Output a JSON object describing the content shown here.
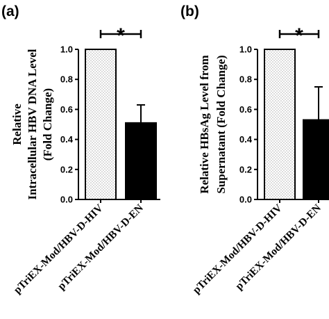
{
  "chart_data": [
    {
      "type": "bar",
      "panel_label": "(a)",
      "ylabel_lines": [
        "Relative",
        "Intracellular HBV DNA Level",
        "(Fold Change)"
      ],
      "categories": [
        "pTriEX-Mod/HBV-D-HIV",
        "pTriEX-Mod/HBV-D-EN"
      ],
      "values": [
        1.0,
        0.51
      ],
      "error_upper": [
        0.0,
        0.12
      ],
      "bar_styles": [
        "dotted",
        "black"
      ],
      "ylim": [
        0,
        1.0
      ],
      "yticks": [
        "0.0",
        "0.2",
        "0.4",
        "0.6",
        "0.8",
        "1.0"
      ],
      "significance": "*"
    },
    {
      "type": "bar",
      "panel_label": "(b)",
      "ylabel_lines": [
        "Relative HBsAg Level from",
        "Supernatant (Fold Change)"
      ],
      "categories": [
        "pTriEX-Mod/HBV-D-HIV",
        "pTriEX-Mod/HBV-D-EN"
      ],
      "values": [
        1.0,
        0.53
      ],
      "error_upper": [
        0.0,
        0.22
      ],
      "bar_styles": [
        "dotted",
        "black"
      ],
      "ylim": [
        0,
        1.0
      ],
      "yticks": [
        "0.0",
        "0.2",
        "0.4",
        "0.6",
        "0.8",
        "1.0"
      ],
      "significance": "*"
    }
  ]
}
